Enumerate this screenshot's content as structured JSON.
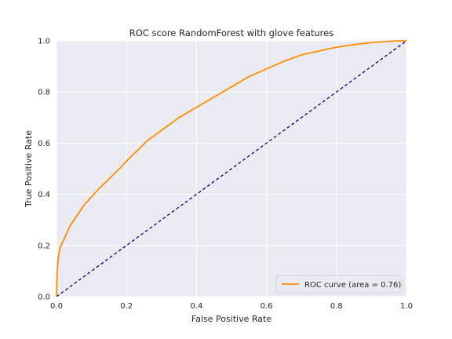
{
  "chart_data": {
    "type": "line",
    "title": "ROC score RandomForest with glove features",
    "xlabel": "False Positive Rate",
    "ylabel": "True Positive Rate",
    "xlim": [
      0.0,
      1.0
    ],
    "ylim": [
      0.0,
      1.0
    ],
    "xticks": [
      "0.0",
      "0.2",
      "0.4",
      "0.6",
      "0.8",
      "1.0"
    ],
    "yticks": [
      "0.0",
      "0.2",
      "0.4",
      "0.6",
      "0.8",
      "1.0"
    ],
    "grid": true,
    "legend_position": "lower-right",
    "series": [
      {
        "name": "ROC curve (area = 0.76)",
        "color": "#ff8c00",
        "x": [
          0.0,
          0.002,
          0.005,
          0.01,
          0.02,
          0.03,
          0.04,
          0.05,
          0.06,
          0.08,
          0.1,
          0.12,
          0.15,
          0.18,
          0.2,
          0.23,
          0.26,
          0.3,
          0.35,
          0.4,
          0.45,
          0.5,
          0.55,
          0.6,
          0.65,
          0.7,
          0.75,
          0.8,
          0.85,
          0.9,
          0.95,
          0.98,
          1.0
        ],
        "y": [
          0.0,
          0.1,
          0.15,
          0.19,
          0.22,
          0.25,
          0.28,
          0.3,
          0.32,
          0.36,
          0.39,
          0.42,
          0.46,
          0.5,
          0.53,
          0.57,
          0.61,
          0.65,
          0.7,
          0.74,
          0.78,
          0.82,
          0.86,
          0.89,
          0.92,
          0.945,
          0.96,
          0.975,
          0.985,
          0.993,
          0.998,
          1.0,
          1.0
        ]
      },
      {
        "name": "",
        "color": "#000080",
        "dashed": true,
        "x": [
          0.0,
          1.0
        ],
        "y": [
          0.0,
          1.0
        ]
      }
    ]
  }
}
